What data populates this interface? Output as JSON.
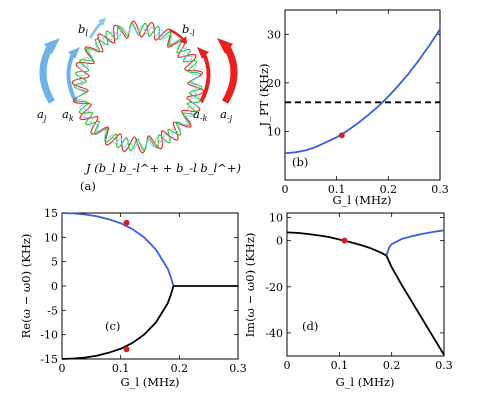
{
  "figure": {
    "panel_a": {
      "tag": "(a)",
      "coupling_label": "J (b_l b_-l^+ + b_-l b_l^+)",
      "mode_labels": {
        "b_l": "b",
        "b_l_sub": "l",
        "b_ml": "b",
        "b_ml_sub": "-l",
        "a_j": "a",
        "a_j_sub": "j",
        "a_k": "a",
        "a_k_sub": "k",
        "a_mk": "a",
        "a_mk_sub": "-k",
        "a_mj": "a",
        "a_mj_sub": "-j"
      },
      "colors": {
        "blue": "#6fb2ea",
        "red": "#e8201e",
        "green": "#2bc22b",
        "light_blue": "#8ec6f2"
      }
    }
  },
  "chart_data": [
    {
      "id": "b",
      "type": "line",
      "tag": "(b)",
      "xlabel": "G_l (MHz)",
      "ylabel": "J_PT (KHz)",
      "xlim": [
        0,
        0.3
      ],
      "ylim": [
        0,
        35
      ],
      "xticks": [
        "0",
        "0.1",
        "0.2",
        "0.3"
      ],
      "yticks": [
        "10",
        "20",
        "30"
      ],
      "series": [
        {
          "color": "#3a5fdc",
          "style": "solid",
          "x": [
            0,
            0.02,
            0.04,
            0.06,
            0.08,
            0.1,
            0.12,
            0.14,
            0.16,
            0.18,
            0.2,
            0.22,
            0.24,
            0.26,
            0.28,
            0.3
          ],
          "y": [
            5.5,
            5.7,
            6.1,
            6.8,
            7.8,
            8.8,
            10.1,
            11.6,
            13.3,
            15.1,
            17.2,
            19.5,
            22.0,
            24.8,
            27.8,
            31.0
          ]
        },
        {
          "color": "#000000",
          "style": "dashed",
          "x": [
            0,
            0.3
          ],
          "y": [
            16,
            16
          ]
        }
      ],
      "points": [
        {
          "x": 0.11,
          "y": 9.2,
          "color": "#d62020"
        }
      ]
    },
    {
      "id": "c",
      "type": "line",
      "tag": "(c)",
      "xlabel": "G_l (MHz)",
      "ylabel": "Re(ω − ω0) (KHz)",
      "xlim": [
        0,
        0.3
      ],
      "ylim": [
        -15,
        15
      ],
      "xticks": [
        "0",
        "0.1",
        "0.2",
        "0.3"
      ],
      "yticks": [
        "-15",
        "-10",
        "-5",
        "0",
        "5",
        "10",
        "15"
      ],
      "series": [
        {
          "color": "#3a5fdc",
          "style": "solid",
          "x": [
            0,
            0.02,
            0.04,
            0.06,
            0.08,
            0.1,
            0.12,
            0.14,
            0.16,
            0.18,
            0.185,
            0.19
          ],
          "y": [
            15.0,
            14.9,
            14.7,
            14.3,
            13.7,
            12.9,
            11.7,
            10.0,
            7.5,
            3.6,
            2.0,
            0.0
          ]
        },
        {
          "color": "#000000",
          "style": "solid",
          "x": [
            0,
            0.02,
            0.04,
            0.06,
            0.08,
            0.1,
            0.12,
            0.14,
            0.16,
            0.18,
            0.185,
            0.19
          ],
          "y": [
            -15.0,
            -14.9,
            -14.7,
            -14.3,
            -13.7,
            -12.9,
            -11.7,
            -10.0,
            -7.5,
            -3.6,
            -2.0,
            0.0
          ]
        },
        {
          "color": "#000000",
          "style": "solid",
          "x": [
            0.19,
            0.3
          ],
          "y": [
            0,
            0
          ]
        }
      ],
      "points": [
        {
          "x": 0.11,
          "y": 13.0,
          "color": "#d62020"
        },
        {
          "x": 0.11,
          "y": -13.0,
          "color": "#d62020"
        }
      ]
    },
    {
      "id": "d",
      "type": "line",
      "tag": "(d)",
      "xlabel": "G_l (MHz)",
      "ylabel": "Im(ω − ω0) (KHz)",
      "xlim": [
        0,
        0.3
      ],
      "ylim": [
        -50,
        12
      ],
      "xticks": [
        "0",
        "0.1",
        "0.2",
        "0.3"
      ],
      "yticks": [
        "-40",
        "-20",
        "0",
        "10"
      ],
      "series": [
        {
          "color": "#000000",
          "style": "solid",
          "x": [
            0,
            0.02,
            0.04,
            0.06,
            0.08,
            0.1,
            0.12,
            0.14,
            0.16,
            0.18,
            0.19
          ],
          "y": [
            3.6,
            3.4,
            2.9,
            2.3,
            1.6,
            0.5,
            -0.6,
            -1.8,
            -3.3,
            -5.2,
            -6.5
          ]
        },
        {
          "color": "#3a5fdc",
          "style": "solid",
          "x": [
            0.19,
            0.195,
            0.2,
            0.22,
            0.24,
            0.26,
            0.28,
            0.3
          ],
          "y": [
            -6.5,
            -3.0,
            -1.5,
            0.8,
            2.0,
            3.0,
            3.8,
            4.5
          ]
        },
        {
          "color": "#000000",
          "style": "solid",
          "x": [
            0.19,
            0.2,
            0.22,
            0.24,
            0.26,
            0.28,
            0.3
          ],
          "y": [
            -6.5,
            -11.5,
            -19.5,
            -27.0,
            -34.5,
            -42.0,
            -49.5
          ]
        }
      ],
      "points": [
        {
          "x": 0.11,
          "y": 0.0,
          "color": "#d62020"
        }
      ]
    }
  ]
}
